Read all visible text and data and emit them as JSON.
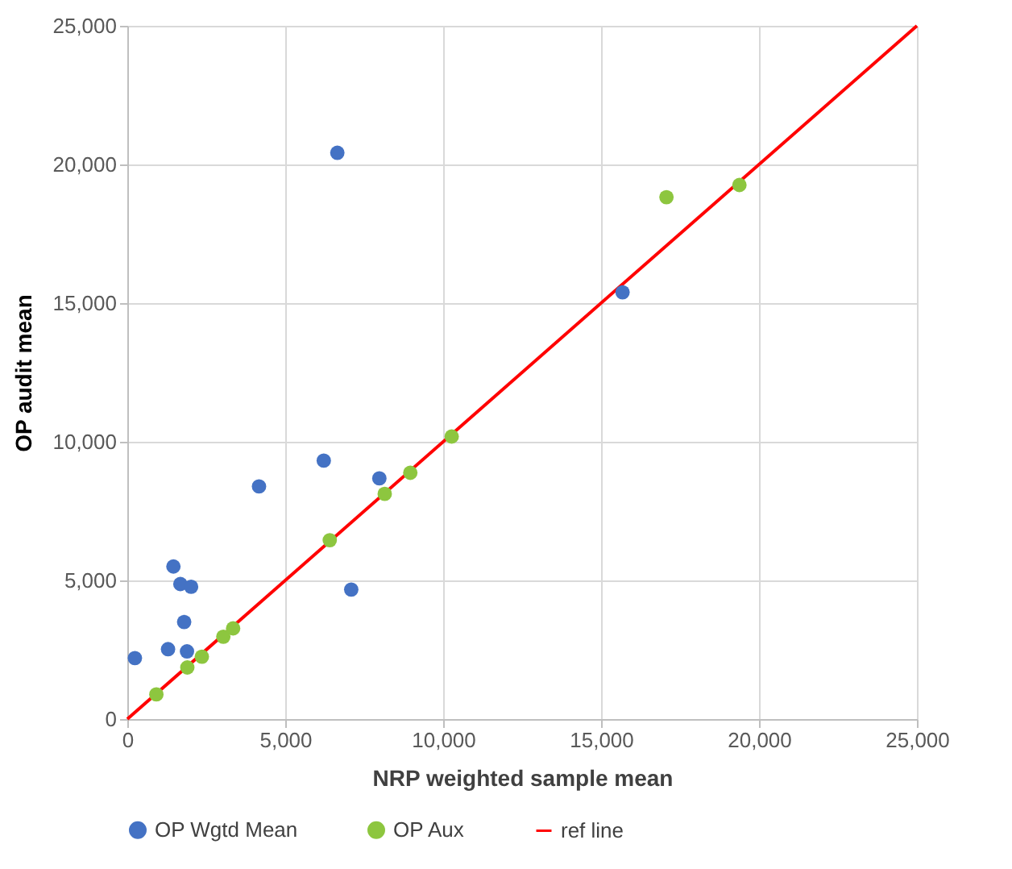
{
  "chart_data": {
    "type": "scatter",
    "xlabel": "NRP weighted sample mean",
    "ylabel": "OP audit mean",
    "xlim": [
      0,
      25000
    ],
    "xticks": [
      0,
      {
        "value": 5000,
        "label": "5,000"
      },
      {
        "value": 10000,
        "label": "10,000"
      },
      {
        "value": 15000,
        "label": "15,000"
      },
      {
        "value": 20000,
        "label": "20,000"
      },
      {
        "value": 25000,
        "label": "25,000"
      }
    ],
    "ylim": [
      0,
      25000
    ],
    "yticks": [
      0,
      {
        "value": 5000,
        "label": "5,000"
      },
      {
        "value": 10000,
        "label": "10,000"
      },
      {
        "value": 15000,
        "label": "15,000"
      },
      {
        "value": 20000,
        "label": "20,000"
      },
      {
        "value": 25000,
        "label": "25,000"
      }
    ],
    "grid": true,
    "legend": "bottom",
    "series": [
      {
        "name": "OP Wgtd Mean",
        "color": "#4472c4",
        "marker": "circle",
        "x": [
          240,
          1290,
          1890,
          1800,
          1460,
          1680,
          2020,
          4170,
          6220,
          7980,
          7090,
          15680,
          6650
        ],
        "values": [
          2200,
          2520,
          2440,
          3500,
          5500,
          4870,
          4770,
          8390,
          9320,
          8680,
          4670,
          15390,
          20420
        ]
      },
      {
        "name": "OP Aux",
        "color": "#8dc63f",
        "marker": "circle",
        "x": [
          920,
          1900,
          2360,
          3040,
          3350,
          6410,
          8150,
          8960,
          10270,
          17070,
          19380
        ],
        "values": [
          890,
          1860,
          2250,
          2970,
          3270,
          6450,
          8120,
          8880,
          10190,
          18820,
          19260
        ]
      },
      {
        "name": "ref line",
        "type": "line",
        "color": "#ff0000",
        "marker": "none",
        "line_style": "solid",
        "x": [
          0,
          25000
        ],
        "values": [
          0,
          25000
        ]
      }
    ]
  }
}
